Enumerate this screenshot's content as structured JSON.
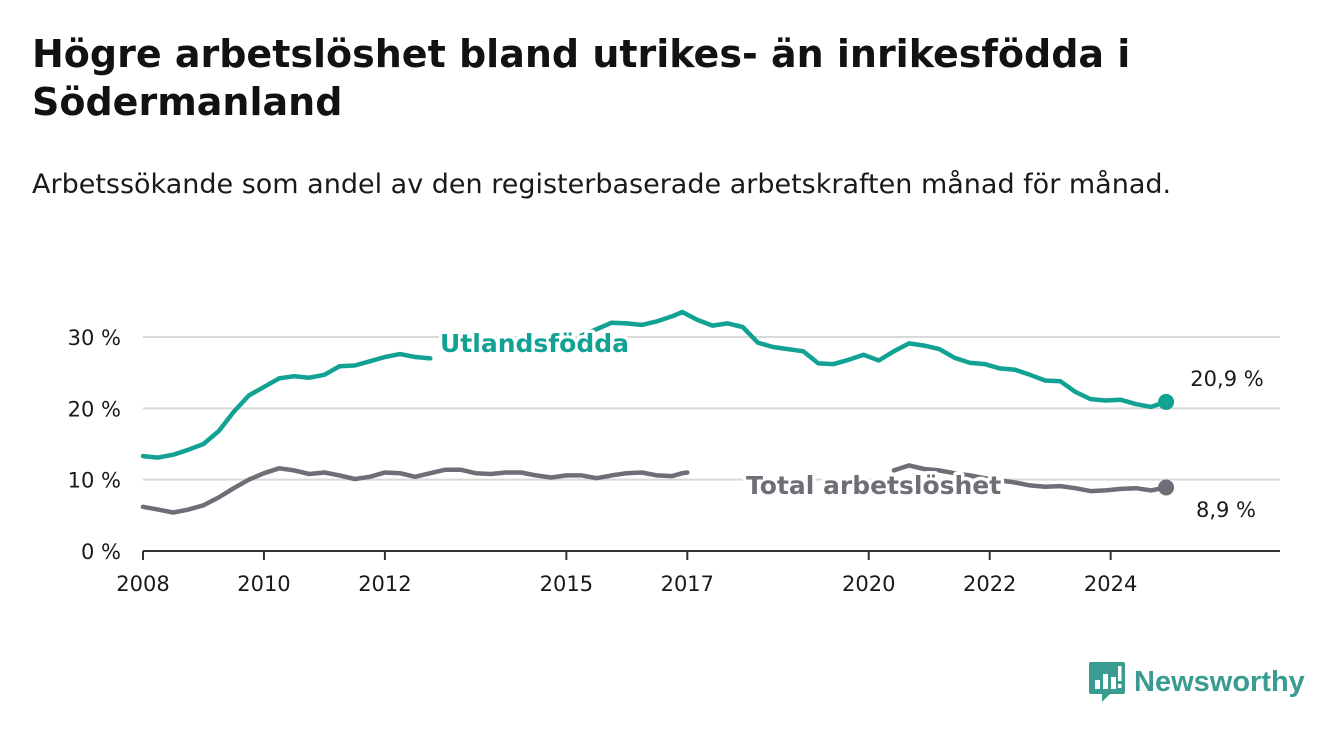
{
  "title": "Högre arbetslöshet bland utrikes- än inrikesfödda i Södermanland",
  "subtitle": "Arbetssökande som andel av den registerbaserade arbetskraften månad för månad.",
  "brand": {
    "name": "Newsworthy",
    "icon": "bar-chart-exclamation-icon"
  },
  "colors": {
    "foreign": "#12a293",
    "total": "#6e6e76",
    "grid": "#d9d9d9",
    "axis": "#333333"
  },
  "chart_data": {
    "type": "line",
    "x_ticks": [
      "2008",
      "2010",
      "2012",
      "2015",
      "2017",
      "2020",
      "2022",
      "2024"
    ],
    "y_ticks": [
      "0 %",
      "10 %",
      "20 %",
      "30 %"
    ],
    "ylim": [
      0,
      30
    ],
    "grid": "horizontal",
    "series": [
      {
        "name": "Utlandsfödda",
        "color": "#12a293",
        "end_label": "20,9 %",
        "points": [
          [
            "2008-01",
            13.3
          ],
          [
            "2008-04",
            13.1
          ],
          [
            "2008-07",
            13.5
          ],
          [
            "2008-10",
            14.2
          ],
          [
            "2009-01",
            15.0
          ],
          [
            "2009-04",
            16.8
          ],
          [
            "2009-07",
            19.5
          ],
          [
            "2009-10",
            21.8
          ],
          [
            "2010-01",
            23.0
          ],
          [
            "2010-04",
            24.2
          ],
          [
            "2010-07",
            24.5
          ],
          [
            "2010-10",
            24.3
          ],
          [
            "2011-01",
            24.7
          ],
          [
            "2011-04",
            25.9
          ],
          [
            "2011-07",
            26.0
          ],
          [
            "2011-10",
            26.6
          ],
          [
            "2012-01",
            27.2
          ],
          [
            "2012-04",
            27.6
          ],
          [
            "2012-07",
            27.2
          ],
          [
            "2012-10",
            27.0
          ],
          [
            "2015-04",
            30.2
          ],
          [
            "2015-07",
            31.1
          ],
          [
            "2015-10",
            32.0
          ],
          [
            "2016-01",
            31.9
          ],
          [
            "2016-04",
            31.7
          ],
          [
            "2016-07",
            32.2
          ],
          [
            "2016-10",
            32.9
          ],
          [
            "2016-12",
            33.5
          ],
          [
            "2017-03",
            32.4
          ],
          [
            "2017-06",
            31.6
          ],
          [
            "2017-09",
            31.9
          ],
          [
            "2017-12",
            31.4
          ],
          [
            "2018-03",
            29.2
          ],
          [
            "2018-06",
            28.6
          ],
          [
            "2018-09",
            28.3
          ],
          [
            "2018-12",
            28.0
          ],
          [
            "2019-03",
            26.3
          ],
          [
            "2019-06",
            26.2
          ],
          [
            "2019-09",
            26.8
          ],
          [
            "2019-12",
            27.5
          ],
          [
            "2020-03",
            26.7
          ],
          [
            "2020-06",
            28.0
          ],
          [
            "2020-09",
            29.1
          ],
          [
            "2020-12",
            28.8
          ],
          [
            "2021-03",
            28.3
          ],
          [
            "2021-06",
            27.1
          ],
          [
            "2021-09",
            26.4
          ],
          [
            "2021-12",
            26.2
          ],
          [
            "2022-03",
            25.6
          ],
          [
            "2022-06",
            25.4
          ],
          [
            "2022-09",
            24.7
          ],
          [
            "2022-12",
            23.9
          ],
          [
            "2023-03",
            23.8
          ],
          [
            "2023-06",
            22.3
          ],
          [
            "2023-09",
            21.3
          ],
          [
            "2023-12",
            21.1
          ],
          [
            "2024-03",
            21.2
          ],
          [
            "2024-06",
            20.6
          ],
          [
            "2024-09",
            20.2
          ],
          [
            "2024-12",
            20.9
          ]
        ]
      },
      {
        "name": "Total arbetslöshet",
        "color": "#6e6e76",
        "end_label": "8,9 %",
        "points": [
          [
            "2008-01",
            6.2
          ],
          [
            "2008-04",
            5.8
          ],
          [
            "2008-07",
            5.4
          ],
          [
            "2008-10",
            5.8
          ],
          [
            "2009-01",
            6.4
          ],
          [
            "2009-04",
            7.5
          ],
          [
            "2009-07",
            8.8
          ],
          [
            "2009-10",
            10.0
          ],
          [
            "2010-01",
            10.9
          ],
          [
            "2010-04",
            11.6
          ],
          [
            "2010-07",
            11.3
          ],
          [
            "2010-10",
            10.8
          ],
          [
            "2011-01",
            11.0
          ],
          [
            "2011-04",
            10.6
          ],
          [
            "2011-07",
            10.1
          ],
          [
            "2011-10",
            10.4
          ],
          [
            "2012-01",
            11.0
          ],
          [
            "2012-04",
            10.9
          ],
          [
            "2012-07",
            10.4
          ],
          [
            "2012-10",
            10.9
          ],
          [
            "2013-01",
            11.4
          ],
          [
            "2013-04",
            11.4
          ],
          [
            "2013-07",
            10.9
          ],
          [
            "2013-10",
            10.8
          ],
          [
            "2014-01",
            11.0
          ],
          [
            "2014-04",
            11.0
          ],
          [
            "2014-07",
            10.6
          ],
          [
            "2014-10",
            10.3
          ],
          [
            "2015-01",
            10.6
          ],
          [
            "2015-04",
            10.6
          ],
          [
            "2015-07",
            10.2
          ],
          [
            "2015-10",
            10.6
          ],
          [
            "2016-01",
            10.9
          ],
          [
            "2016-04",
            11.0
          ],
          [
            "2016-07",
            10.6
          ],
          [
            "2016-10",
            10.5
          ],
          [
            "2016-12",
            10.9
          ],
          [
            "2017-01",
            11.0
          ],
          [
            "2020-06",
            11.3
          ],
          [
            "2020-09",
            12.0
          ],
          [
            "2020-12",
            11.5
          ],
          [
            "2021-03",
            11.3
          ],
          [
            "2021-06",
            10.9
          ],
          [
            "2021-09",
            10.6
          ],
          [
            "2021-12",
            10.2
          ],
          [
            "2022-03",
            9.9
          ],
          [
            "2022-06",
            9.6
          ],
          [
            "2022-09",
            9.2
          ],
          [
            "2022-12",
            9.0
          ],
          [
            "2023-03",
            9.1
          ],
          [
            "2023-06",
            8.8
          ],
          [
            "2023-09",
            8.4
          ],
          [
            "2023-12",
            8.5
          ],
          [
            "2024-03",
            8.7
          ],
          [
            "2024-06",
            8.8
          ],
          [
            "2024-09",
            8.5
          ],
          [
            "2024-12",
            8.9
          ]
        ]
      }
    ]
  }
}
